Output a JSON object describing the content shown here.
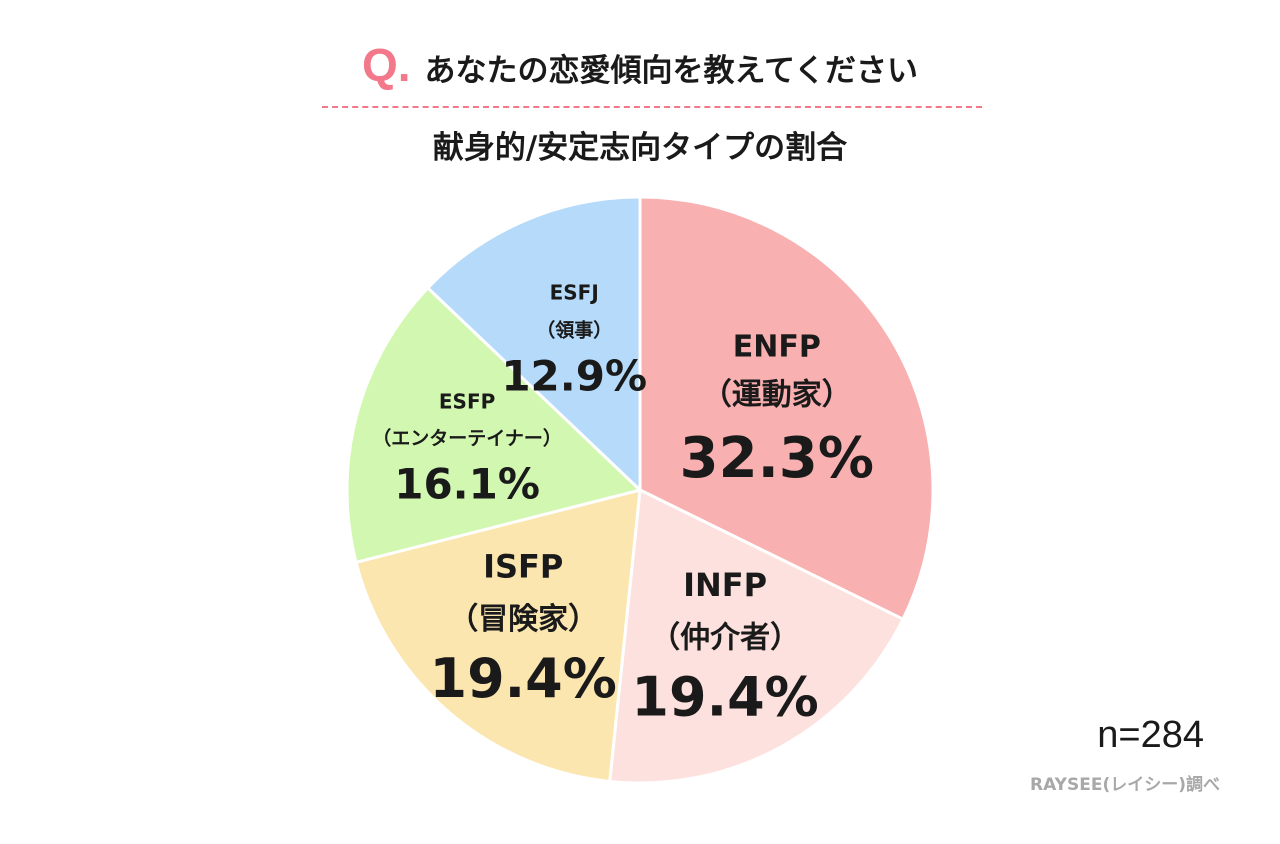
{
  "header": {
    "q_mark": "Q.",
    "question": "あなたの恋愛傾向を教えてください",
    "subtitle": "献身的/安定志向タイプの割合"
  },
  "footer": {
    "sample_size": "n=284",
    "source": "RAYSEE(レイシー)調べ"
  },
  "chart_data": {
    "type": "pie",
    "start_angle_deg": 0,
    "direction": "clockwise",
    "slices": [
      {
        "label": "ENFP",
        "sublabel": "（運動家）",
        "value": 32.3,
        "value_label": "32.3%",
        "color": "#f9b0b0"
      },
      {
        "label": "INFP",
        "sublabel": "（仲介者）",
        "value": 19.4,
        "value_label": "19.4%",
        "color": "#fde1de"
      },
      {
        "label": "ISFP",
        "sublabel": "（冒険家）",
        "value": 19.4,
        "value_label": "19.4%",
        "color": "#fbe6b0"
      },
      {
        "label": "ESFP",
        "sublabel": "（エンターテイナー）",
        "value": 16.1,
        "value_label": "16.1%",
        "color": "#d1f7b0"
      },
      {
        "label": "ESFJ",
        "sublabel": "（領事）",
        "value": 12.9,
        "value_label": "12.9%",
        "color": "#b5dafa"
      }
    ]
  }
}
